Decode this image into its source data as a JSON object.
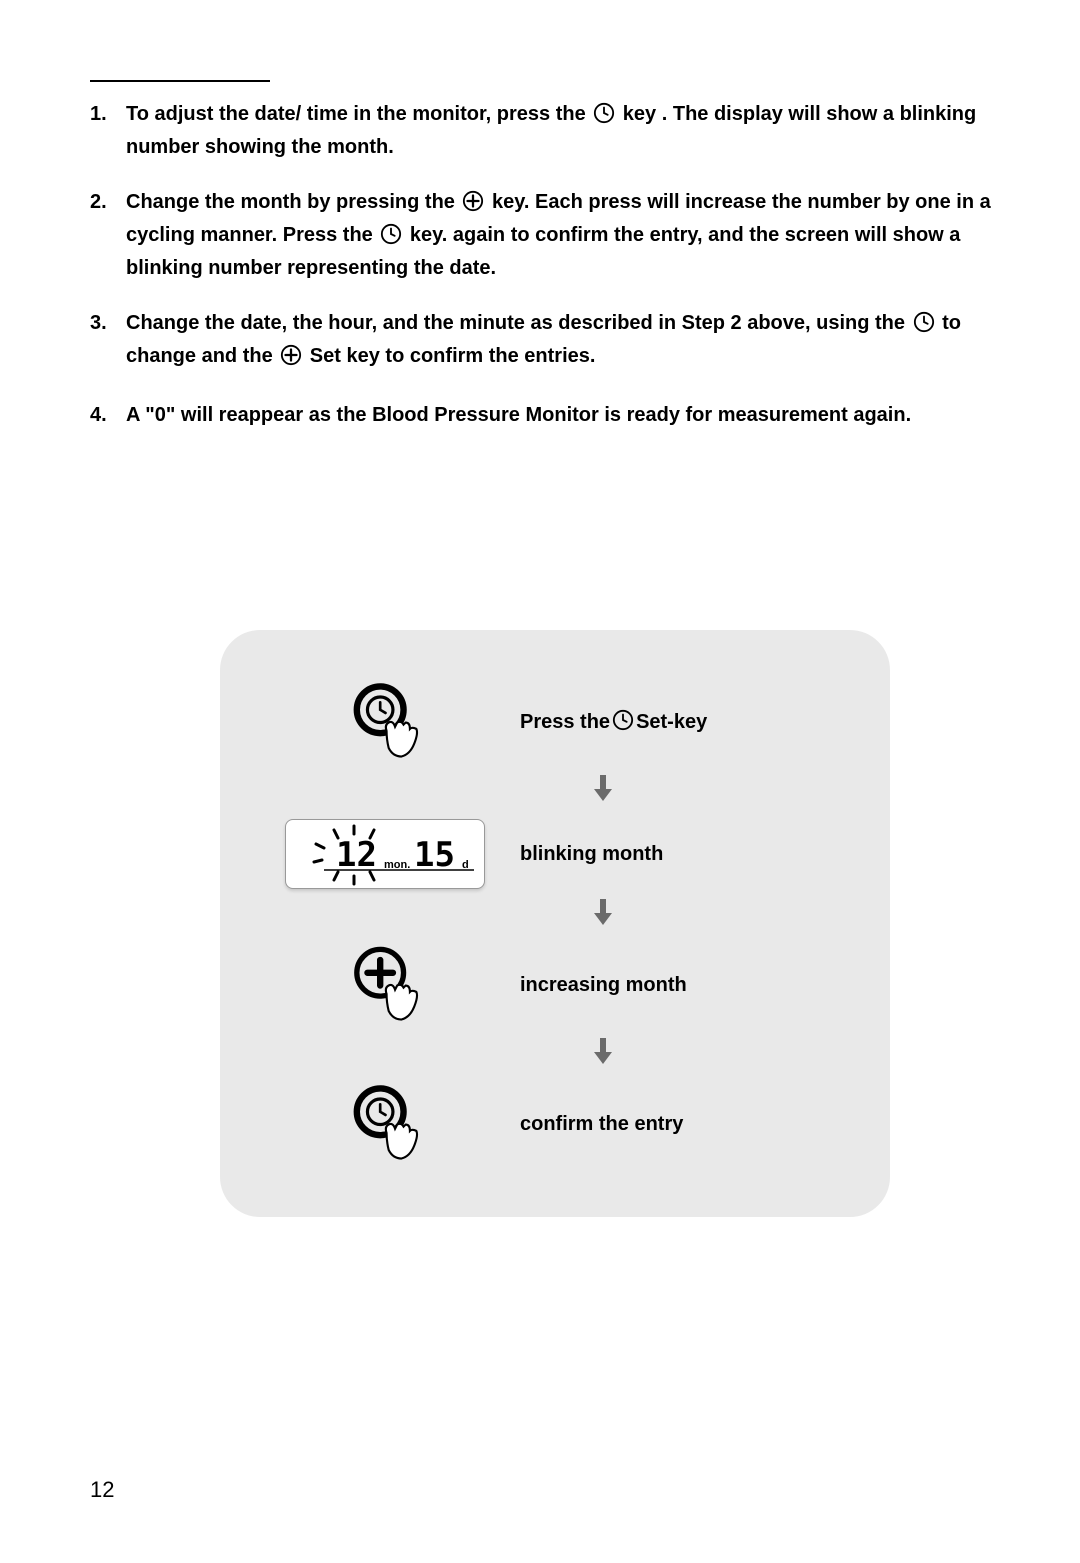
{
  "instructions": [
    {
      "num": "1.",
      "parts": [
        "To adjust the date/ time in the monitor, press the ",
        "ICON_CLOCK",
        " key . The display will show a blinking number showing the month."
      ]
    },
    {
      "num": "2.",
      "parts": [
        "Change the month by pressing the ",
        "ICON_PLUS",
        " key. Each press will increase the number by one in a cycling manner. Press the ",
        "ICON_CLOCK",
        " key. again to confirm the entry, and the screen will show a blinking number representing the date."
      ]
    },
    {
      "num": "3.",
      "parts": [
        "Change the date, the hour, and the minute as described in Step 2 above, using the ",
        "ICON_CLOCK",
        " to change and the ",
        "ICON_PLUS",
        " Set key to confirm the entries."
      ]
    },
    {
      "num": "4.",
      "parts": [
        "A \"0\" will reappear as the Blood Pressure Monitor is ready for measurement again."
      ]
    }
  ],
  "diagram": {
    "rows": [
      {
        "icon": "press_clock",
        "label": "Press the ",
        "hasClockIcon": true,
        "suffix": " Set-key"
      },
      {
        "icon": "lcd",
        "label": "blinking month"
      },
      {
        "icon": "press_plus",
        "label": "increasing month"
      },
      {
        "icon": "press_clock",
        "label": "confirm the entry"
      }
    ]
  },
  "lcd": {
    "month_value": "12",
    "month_label": "mon.",
    "date_value": "15",
    "date_label": "d"
  },
  "page_number": "12",
  "colors": {
    "background": "#ffffff",
    "text": "#000000",
    "diagram_bg": "#e9e9e9",
    "arrow_fill": "#6b6b6b"
  }
}
